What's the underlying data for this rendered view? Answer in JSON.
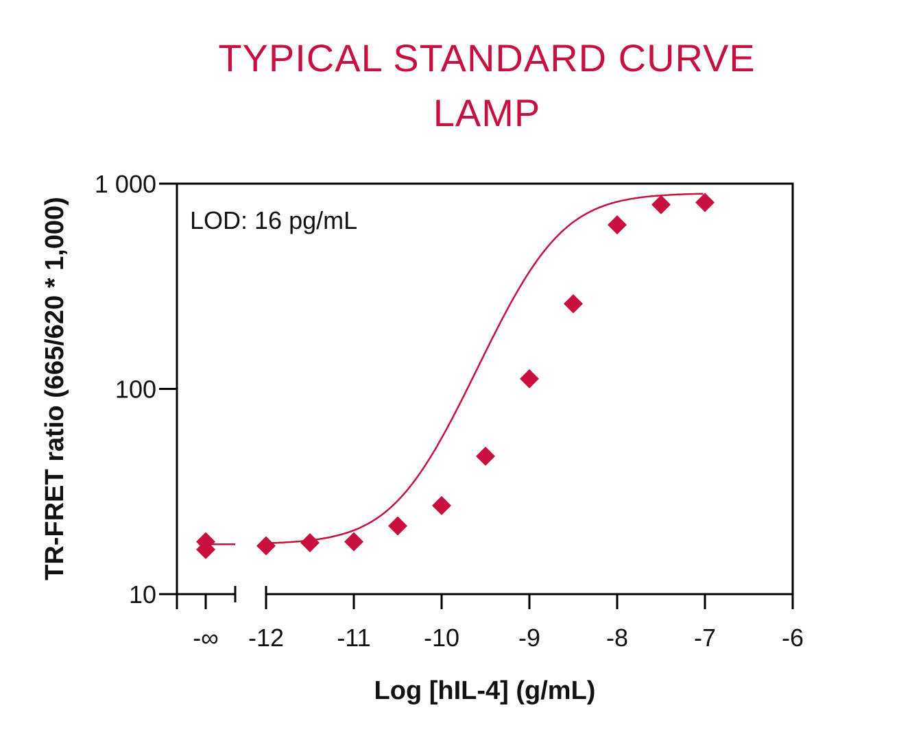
{
  "colors": {
    "accent": "#c8103f",
    "axis": "#000000",
    "text": "#111111"
  },
  "chart_data": {
    "type": "scatter",
    "title": "TYPICAL STANDARD CURVE",
    "subtitle": "LAMP",
    "xlabel": "Log [hIL-4] (g/mL)",
    "ylabel": "TR-FRET ratio (665/620 * 1,000)",
    "annotation": "LOD: 16 pg/mL",
    "y_scale": "log",
    "ylim": [
      10,
      1000
    ],
    "xlim": [
      -12,
      -6
    ],
    "x_break": "-∞",
    "x_tick_labels": [
      "-∞",
      "-12",
      "-11",
      "-10",
      "-9",
      "-8",
      "-7",
      "-6"
    ],
    "y_tick_labels": [
      "10",
      "100",
      "1 000"
    ],
    "grid": false,
    "series": [
      {
        "points": [
          {
            "x": "-∞",
            "y": 18
          },
          {
            "x": "-∞",
            "y": 16.5
          },
          {
            "x": -12,
            "y": 17.2
          },
          {
            "x": -11.5,
            "y": 17.8
          },
          {
            "x": -11,
            "y": 18
          },
          {
            "x": -10.5,
            "y": 21.5
          },
          {
            "x": -10,
            "y": 27
          },
          {
            "x": -9.5,
            "y": 47
          },
          {
            "x": -9,
            "y": 112
          },
          {
            "x": -8.5,
            "y": 260
          },
          {
            "x": -8,
            "y": 630
          },
          {
            "x": -7.5,
            "y": 790
          },
          {
            "x": -7,
            "y": 810
          }
        ]
      }
    ],
    "fit": {
      "model": "4PL",
      "bottom": 17.5,
      "top": 900,
      "log_ec50": -8.85,
      "hill": 1.15
    }
  }
}
